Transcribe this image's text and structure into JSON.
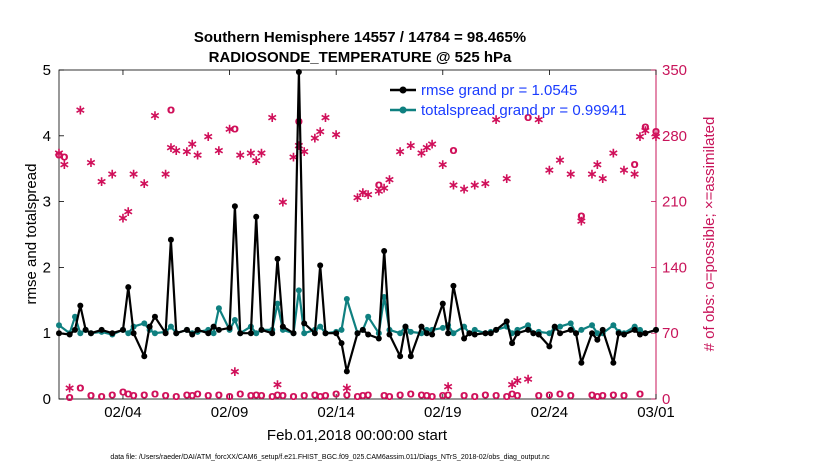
{
  "chart_data": {
    "type": "line",
    "title": "Southern Hemisphere 14557 / 14784 = 98.465%",
    "subtitle": "RADIOSONDE_TEMPERATURE @ 525 hPa",
    "xlabel": "Feb.01,2018 00:00:00 start",
    "ylabel_left": "rmse and totalspread",
    "ylabel_right": "# of obs: o=possible; ×=assimilated",
    "x_ticks": [
      "02/04",
      "02/09",
      "02/14",
      "02/19",
      "02/24",
      "03/01"
    ],
    "x_tick_days": [
      3,
      8,
      13,
      18,
      23,
      28
    ],
    "xlim_days": [
      0,
      28
    ],
    "y_left_ticks": [
      "0",
      "1",
      "2",
      "3",
      "4",
      "5"
    ],
    "ylim_left": [
      0,
      5
    ],
    "y_right_ticks": [
      "0",
      "70",
      "140",
      "210",
      "280",
      "350"
    ],
    "ylim_right": [
      0,
      350
    ],
    "colors": {
      "rmse": "#000000",
      "spread": "#0f8080",
      "obs": "#d0105a",
      "right_axis": "#c8145a",
      "legend_text": "#1a3cff"
    },
    "legend_position": "top-right",
    "series": [
      {
        "name": "rmse grand pr = 1.0545",
        "x": [
          0,
          0.5,
          0.75,
          1,
          1.25,
          1.5,
          2,
          2.5,
          3,
          3.25,
          3.5,
          4,
          4.25,
          4.5,
          5,
          5.25,
          5.5,
          6,
          6.25,
          6.5,
          7,
          7.25,
          7.5,
          8,
          8.25,
          8.5,
          9,
          9.25,
          9.5,
          10,
          10.25,
          10.5,
          11,
          11.25,
          11.5,
          12,
          12.25,
          12.5,
          13,
          13.25,
          13.5,
          14,
          14.25,
          14.5,
          15,
          15.25,
          15.5,
          16,
          16.25,
          16.5,
          17,
          17.25,
          17.5,
          18,
          18.25,
          18.5,
          19,
          19.25,
          19.5,
          20,
          20.25,
          20.5,
          21,
          21.25,
          21.5,
          22,
          22.25,
          22.5,
          23,
          23.25,
          23.5,
          24,
          24.25,
          24.5,
          25,
          25.25,
          25.5,
          26,
          26.25,
          26.5,
          27,
          27.25,
          27.5,
          28
        ],
        "y": [
          1.0,
          0.98,
          1.05,
          1.42,
          1.05,
          1.0,
          1.05,
          1.0,
          1.05,
          1.7,
          1.0,
          0.65,
          1.1,
          1.25,
          1.0,
          2.42,
          1.0,
          1.05,
          0.98,
          1.05,
          1.0,
          1.1,
          1.05,
          1.08,
          2.93,
          1.0,
          1.0,
          2.77,
          1.05,
          1.0,
          2.13,
          1.1,
          1.0,
          4.97,
          1.15,
          1.0,
          2.03,
          1.0,
          1.0,
          0.85,
          0.42,
          1.0,
          1.05,
          0.98,
          0.92,
          2.25,
          0.98,
          0.65,
          1.1,
          0.65,
          1.1,
          1.0,
          0.98,
          1.45,
          1.0,
          1.72,
          0.92,
          1.0,
          0.98,
          1.0,
          1.0,
          1.05,
          1.18,
          0.85,
          1.0,
          1.05,
          1.0,
          0.98,
          0.8,
          1.1,
          1.0,
          1.05,
          1.0,
          0.55,
          1.0,
          0.9,
          1.05,
          0.55,
          1.0,
          0.98,
          1.05,
          0.98,
          1.0,
          1.05
        ]
      },
      {
        "name": "totalspread grand pr = 0.99941",
        "x": [
          0,
          0.5,
          0.75,
          1,
          1.25,
          1.5,
          2,
          2.5,
          3,
          3.25,
          3.5,
          4,
          4.25,
          4.5,
          5,
          5.25,
          5.5,
          6,
          6.25,
          6.5,
          7,
          7.25,
          7.5,
          8,
          8.25,
          8.5,
          9,
          9.25,
          9.5,
          10,
          10.25,
          10.5,
          11,
          11.25,
          11.5,
          12,
          12.25,
          12.5,
          13,
          13.25,
          13.5,
          14,
          14.25,
          14.5,
          15,
          15.25,
          15.5,
          16,
          16.25,
          16.5,
          17,
          17.25,
          17.5,
          18,
          18.25,
          18.5,
          19,
          19.25,
          19.5,
          20,
          20.25,
          20.5,
          21,
          21.25,
          21.5,
          22,
          22.25,
          22.5,
          23,
          23.25,
          23.5,
          24,
          24.25,
          24.5,
          25,
          25.25,
          25.5,
          26,
          26.25,
          26.5,
          27,
          27.25,
          27.5,
          28
        ],
        "y": [
          1.12,
          1.0,
          1.25,
          1.0,
          1.05,
          1.0,
          1.02,
          0.98,
          1.05,
          1.0,
          1.1,
          1.15,
          1.05,
          1.0,
          1.02,
          1.1,
          1.0,
          1.05,
          1.0,
          1.02,
          1.05,
          1.0,
          1.38,
          1.05,
          1.2,
          1.0,
          1.1,
          1.0,
          1.05,
          1.05,
          1.45,
          1.05,
          1.0,
          1.65,
          1.0,
          1.05,
          1.1,
          1.0,
          1.02,
          1.05,
          1.52,
          1.0,
          1.05,
          1.25,
          1.0,
          1.55,
          1.05,
          1.0,
          1.1,
          1.02,
          1.0,
          1.05,
          1.05,
          1.08,
          1.12,
          1.0,
          1.1,
          1.0,
          1.05,
          1.0,
          1.02,
          1.05,
          1.1,
          1.0,
          1.05,
          1.12,
          1.0,
          1.02,
          1.0,
          1.08,
          1.1,
          1.15,
          1.0,
          1.05,
          1.12,
          1.0,
          1.0,
          1.12,
          1.02,
          1.0,
          1.1,
          1.05,
          1.0,
          1.05
        ]
      },
      {
        "name": "possible",
        "x": [
          0,
          0.25,
          0.5,
          1,
          1.5,
          2,
          2.5,
          3,
          3.25,
          3.5,
          4,
          4.5,
          5,
          5.25,
          5.5,
          6,
          6.25,
          6.5,
          7,
          7.5,
          8,
          8.25,
          8.5,
          9,
          9.25,
          9.5,
          10,
          10.25,
          10.5,
          11,
          11.25,
          11.5,
          12,
          12.25,
          12.5,
          13,
          13.5,
          14,
          14.25,
          14.5,
          15,
          15.25,
          15.5,
          16,
          16.5,
          17,
          17.25,
          17.5,
          18,
          18.25,
          18.5,
          19,
          19.5,
          20,
          20.5,
          21,
          21.25,
          21.5,
          22,
          22.5,
          23,
          23.5,
          24,
          24.5,
          25,
          25.25,
          25.5,
          26,
          26.5,
          27,
          27.25,
          27.5,
          28
        ],
        "y": [
          260,
          258,
          2,
          12,
          4,
          3,
          5,
          8,
          6,
          4,
          5,
          6,
          4,
          308,
          3,
          5,
          4,
          6,
          4,
          5,
          3,
          288,
          6,
          4,
          5,
          4,
          3,
          5,
          4,
          3,
          296,
          4,
          5,
          3,
          4,
          6,
          5,
          3,
          4,
          5,
          228,
          4,
          3,
          5,
          6,
          5,
          4,
          3,
          4,
          5,
          265,
          4,
          3,
          5,
          4,
          3,
          6,
          4,
          300,
          4,
          5,
          6,
          4,
          195,
          5,
          3,
          4,
          5,
          4,
          250,
          6,
          290,
          285
        ]
      },
      {
        "name": "assimilated",
        "x": [
          0,
          0.25,
          0.5,
          1,
          1.5,
          2,
          2.5,
          3,
          3.25,
          3.5,
          4,
          4.5,
          5,
          5.25,
          5.5,
          6,
          6.25,
          6.5,
          7,
          7.5,
          8,
          8.25,
          8.5,
          9,
          9.25,
          9.5,
          10,
          10.25,
          10.5,
          11,
          11.25,
          11.5,
          12,
          12.25,
          12.5,
          13,
          13.5,
          14,
          14.25,
          14.5,
          15,
          15.25,
          15.5,
          16,
          16.5,
          17,
          17.25,
          17.5,
          18,
          18.25,
          18.5,
          19,
          19.5,
          20,
          20.5,
          21,
          21.25,
          21.5,
          22,
          22.5,
          23,
          23.5,
          24,
          24.5,
          25,
          25.25,
          25.5,
          26,
          26.5,
          27,
          27.25,
          27.5,
          28
        ],
        "y": [
          262,
          250,
          12,
          308,
          252,
          232,
          240,
          193,
          200,
          240,
          230,
          302,
          240,
          268,
          265,
          264,
          272,
          260,
          280,
          265,
          288,
          30,
          260,
          262,
          254,
          262,
          300,
          16,
          210,
          258,
          270,
          264,
          278,
          285,
          300,
          282,
          12,
          215,
          220,
          218,
          222,
          225,
          234,
          264,
          270,
          262,
          268,
          272,
          250,
          14,
          228,
          224,
          228,
          230,
          298,
          235,
          16,
          20,
          22,
          298,
          244,
          255,
          240,
          190,
          240,
          250,
          235,
          262,
          244,
          240,
          280,
          286,
          280
        ]
      }
    ]
  },
  "footnote": "data file: /Users/raeder/DAI/ATM_forcXX/CAM6_setup/f.e21.FHIST_BGC.f09_025.CAM6assim.011/Diags_NTrS_2018-02/obs_diag_output.nc"
}
